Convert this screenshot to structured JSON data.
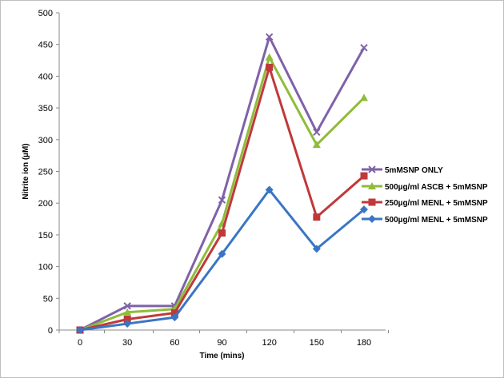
{
  "chart_data": {
    "type": "line",
    "title": "",
    "xlabel": "Time (mins)",
    "ylabel": "Nitrite ion (µM)",
    "x": [
      0,
      30,
      60,
      90,
      120,
      150,
      180
    ],
    "x_tick_labels": [
      "0",
      "30",
      "60",
      "90",
      "120",
      "150",
      "180"
    ],
    "ylim": [
      0,
      500
    ],
    "y_ticks": [
      0,
      50,
      100,
      150,
      200,
      250,
      300,
      350,
      400,
      450,
      500
    ],
    "grid": false,
    "legend_position": "right",
    "series": [
      {
        "name": "5mMSNP ONLY",
        "color": "#7f62a8",
        "marker": "x",
        "values": [
          0,
          38,
          38,
          205,
          462,
          312,
          445
        ]
      },
      {
        "name": "500µg/ml ASCB + 5mMSNP",
        "color": "#8fbc3a",
        "marker": "triangle",
        "values": [
          0,
          28,
          33,
          168,
          430,
          292,
          366
        ]
      },
      {
        "name": "250µg/ml MENL + 5mMSNP",
        "color": "#c0393a",
        "marker": "square",
        "values": [
          0,
          17,
          27,
          153,
          414,
          178,
          243
        ]
      },
      {
        "name": "500µg/ml MENL + 5mMSNP",
        "color": "#3a75c4",
        "marker": "diamond",
        "values": [
          0,
          10,
          20,
          120,
          221,
          128,
          190
        ]
      }
    ]
  }
}
